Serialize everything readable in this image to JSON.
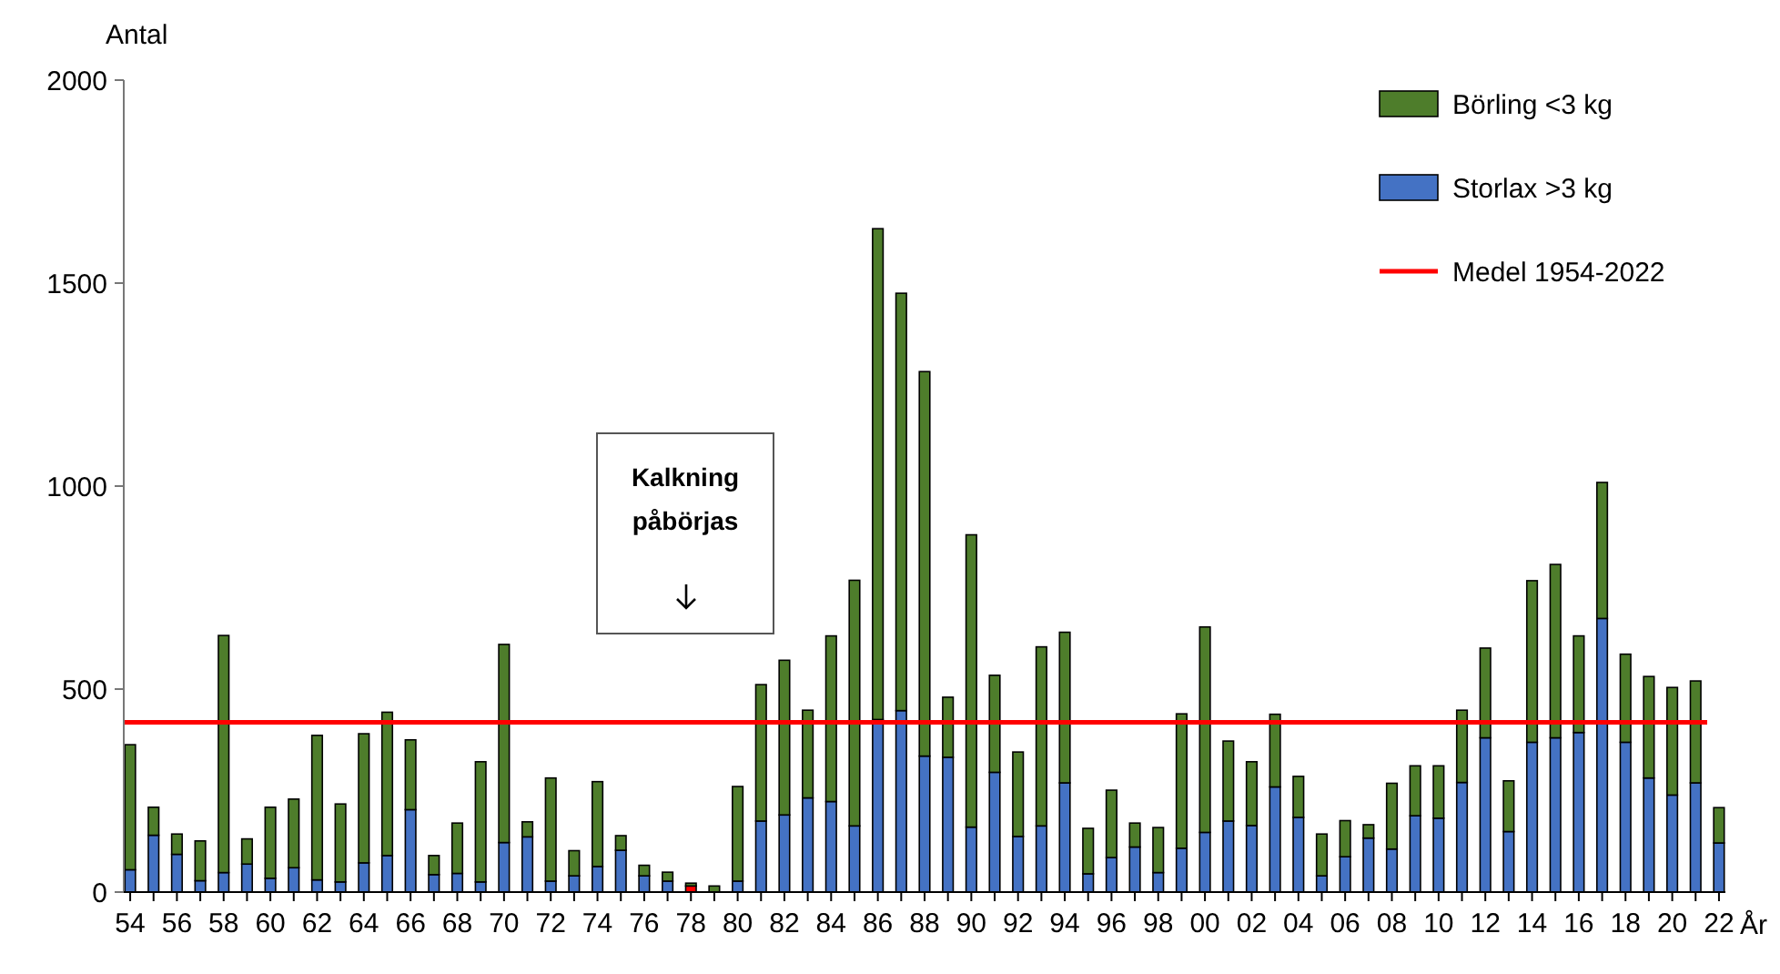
{
  "chart_data": {
    "type": "bar",
    "stacked": true,
    "ylabel": "Antal",
    "xlabel": "År",
    "categories": [
      "54",
      null,
      "56",
      null,
      "58",
      null,
      "60",
      null,
      "62",
      null,
      "64",
      null,
      "66",
      null,
      "68",
      null,
      "70",
      null,
      "72",
      null,
      "74",
      null,
      "76",
      null,
      "78",
      null,
      "80",
      null,
      "82",
      null,
      "84",
      null,
      "86",
      null,
      "88",
      null,
      "90",
      null,
      "92",
      null,
      "94",
      null,
      "96",
      null,
      "98",
      null,
      "00",
      null,
      "02",
      null,
      "04",
      null,
      "06",
      null,
      "08",
      null,
      "10",
      null,
      "12",
      null,
      "14",
      null,
      "16",
      null,
      "18",
      null,
      "20",
      null,
      "22"
    ],
    "series": [
      {
        "name": "Storlax >3 kg",
        "color": "#4472c4",
        "colors": [
          "#4472c4",
          "#4472c4",
          "#4472c4",
          "#4472c4",
          "#4472c4",
          "#4472c4",
          "#4472c4",
          "#4472c4",
          "#4472c4",
          "#4472c4",
          "#4472c4",
          "#4472c4",
          "#4472c4",
          "#4472c4",
          "#4472c4",
          "#4472c4",
          "#4472c4",
          "#4472c4",
          "#4472c4",
          "#4472c4",
          "#4472c4",
          "#4472c4",
          "#4472c4",
          "#4472c4",
          "#ff0000",
          "#4472c4",
          "#4472c4",
          "#4472c4",
          "#4472c4",
          "#4472c4",
          "#4472c4",
          "#4472c4",
          "#4472c4",
          "#4472c4",
          "#4472c4",
          "#4472c4",
          "#4472c4",
          "#4472c4",
          "#4472c4",
          "#4472c4",
          "#4472c4",
          "#4472c4",
          "#4472c4",
          "#4472c4",
          "#4472c4",
          "#4472c4",
          "#4472c4",
          "#4472c4",
          "#4472c4",
          "#4472c4",
          "#4472c4",
          "#4472c4",
          "#4472c4",
          "#4472c4",
          "#4472c4",
          "#4472c4",
          "#4472c4",
          "#4472c4",
          "#4472c4",
          "#4472c4",
          "#4472c4",
          "#4472c4",
          "#4472c4",
          "#4472c4",
          "#4472c4",
          "#4472c4",
          "#4472c4",
          "#4472c4",
          "#4472c4"
        ],
        "values": [
          55,
          140,
          93,
          28,
          48,
          69,
          34,
          60,
          30,
          25,
          72,
          90,
          203,
          43,
          46,
          25,
          122,
          136,
          27,
          40,
          63,
          103,
          40,
          27,
          15,
          0,
          27,
          175,
          190,
          232,
          223,
          163,
          425,
          447,
          335,
          332,
          160,
          295,
          137,
          163,
          269,
          45,
          85,
          111,
          48,
          108,
          147,
          175,
          164,
          259,
          184,
          40,
          87,
          133,
          106,
          188,
          182,
          270,
          380,
          149,
          369,
          380,
          393,
          674,
          369,
          281,
          239,
          269,
          121
        ]
      },
      {
        "name": "Börling <3 kg",
        "color": "#4e7d2b",
        "values": [
          308,
          69,
          50,
          98,
          584,
          62,
          175,
          169,
          356,
          192,
          318,
          353,
          172,
          47,
          124,
          296,
          488,
          37,
          254,
          62,
          209,
          36,
          26,
          22,
          7,
          15,
          233,
          336,
          381,
          216,
          408,
          605,
          1209,
          1028,
          947,
          148,
          720,
          239,
          208,
          441,
          371,
          112,
          166,
          59,
          111,
          331,
          506,
          197,
          157,
          179,
          101,
          103,
          89,
          33,
          162,
          123,
          129,
          178,
          221,
          125,
          398,
          427,
          238,
          335,
          217,
          250,
          265,
          251,
          87
        ]
      }
    ],
    "ylim": [
      0,
      2000
    ],
    "yticks": [
      0,
      500,
      1000,
      1500,
      2000
    ],
    "ref_lines": [
      {
        "axis": "y",
        "value": 418,
        "label": "Medel 1954-2022",
        "color": "#ff0000"
      }
    ],
    "annotations": [
      "Kalkning påbörjas"
    ],
    "legend": "top right"
  }
}
